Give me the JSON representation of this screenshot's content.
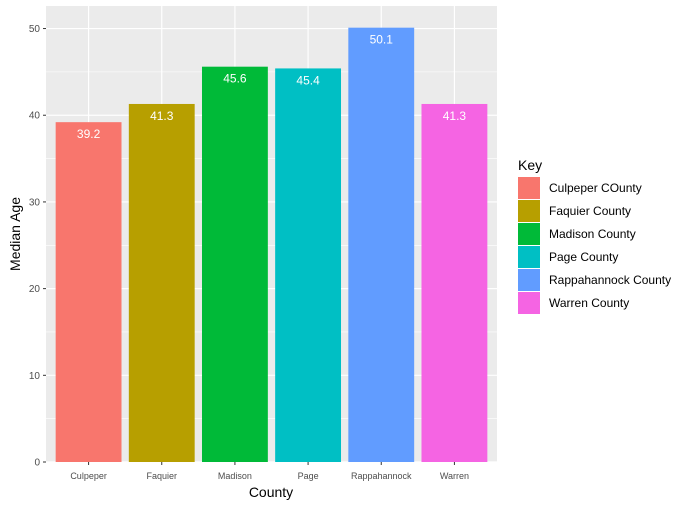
{
  "chart_data": {
    "type": "bar",
    "categories": [
      "Culpeper",
      "Faquier",
      "Madison",
      "Page",
      "Rappahannock",
      "Warren"
    ],
    "values": [
      39.2,
      41.3,
      45.6,
      45.4,
      50.1,
      41.3
    ],
    "data_labels": [
      "39.2",
      "41.3",
      "45.6",
      "45.4",
      "50.1",
      "41.3"
    ],
    "colors": [
      "#F8766D",
      "#B79F00",
      "#00BA38",
      "#00BFC4",
      "#619CFF",
      "#F564E3"
    ],
    "xlabel": "County",
    "ylabel": "Median Age",
    "ylim": [
      0,
      52.6
    ],
    "yticks": [
      0,
      10,
      20,
      30,
      40,
      50
    ],
    "ytick_labels": [
      "0",
      "10",
      "20",
      "30",
      "40",
      "50"
    ],
    "grid": true,
    "panel_background": "#EBEBEB",
    "legend": {
      "title": "Key",
      "position": "right",
      "entries": [
        "Culpeper COunty",
        "Faquier County",
        "Madison County",
        "Page County",
        "Rappahannock County",
        "Warren County"
      ]
    }
  }
}
